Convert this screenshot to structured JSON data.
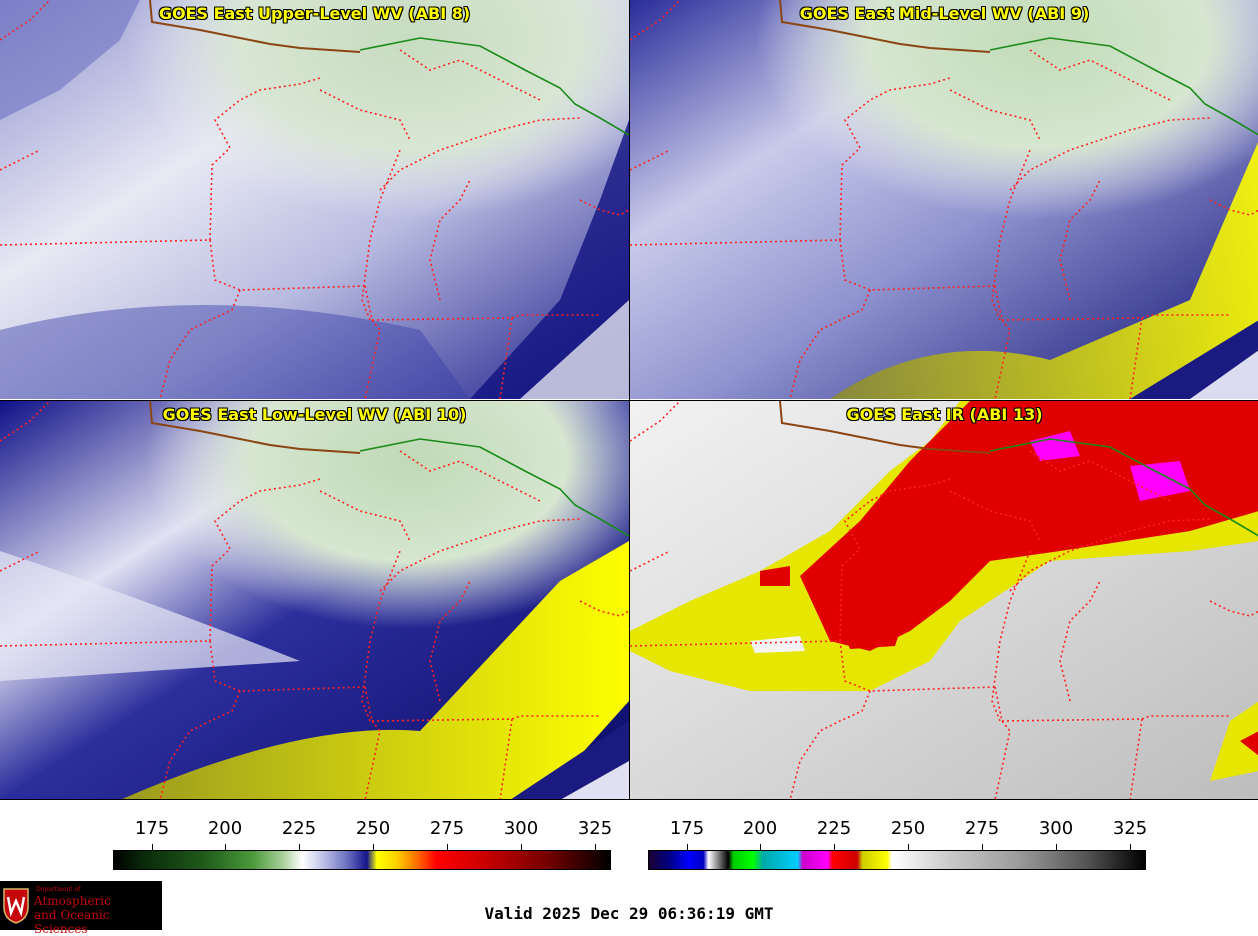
{
  "panels": [
    {
      "title": "GOES East Upper-Level WV (ABI 8)"
    },
    {
      "title": "GOES East Mid-Level WV (ABI 9)"
    },
    {
      "title": "GOES East Low-Level WV (ABI 10)"
    },
    {
      "title": "GOES East IR (ABI 13)"
    }
  ],
  "colorbars": [
    {
      "ticks": [
        "175",
        "200",
        "225",
        "250",
        "275",
        "300",
        "325"
      ]
    },
    {
      "ticks": [
        "175",
        "200",
        "225",
        "250",
        "275",
        "300",
        "325"
      ]
    }
  ],
  "logo": {
    "department": "Department of",
    "line1": "Atmospheric",
    "line2": "and Oceanic Sciences"
  },
  "valid_time": "Valid 2025 Dec 29 06:36:19 GMT",
  "colors": {
    "state_border": "#ff2020",
    "national_border": "#1a8a1a",
    "coast_line": "#8b4513",
    "title_text": "#ffff00"
  },
  "icons": [
    "uw-crest-icon"
  ]
}
